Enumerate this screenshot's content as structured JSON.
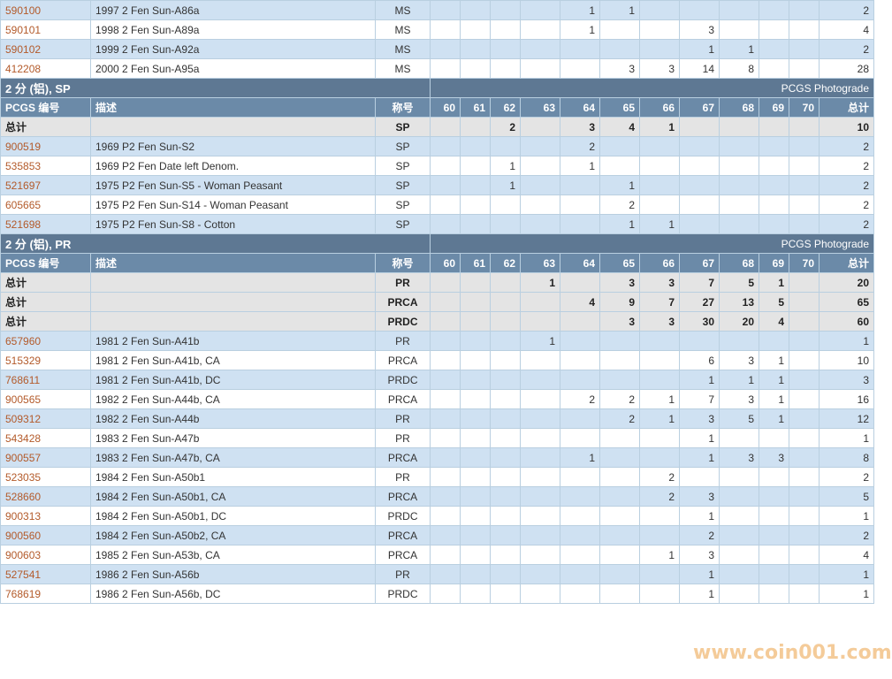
{
  "columns": {
    "pcgs": "PCGS 编号",
    "desc": "描述",
    "designation": "称号",
    "grades": [
      "60",
      "61",
      "62",
      "63",
      "64",
      "65",
      "66",
      "67",
      "68",
      "69",
      "70"
    ],
    "total": "总计"
  },
  "watermark": "www.coin001.com",
  "blocks": [
    {
      "type": "rows",
      "rows": [
        {
          "pcgs": "590100",
          "desc": "1997 2 Fen Sun-A86a",
          "des": "MS",
          "g": [
            "",
            "",
            "",
            "",
            "1",
            "1",
            "",
            "",
            "",
            "",
            ""
          ],
          "total": "2",
          "alt": true
        },
        {
          "pcgs": "590101",
          "desc": "1998 2 Fen Sun-A89a",
          "des": "MS",
          "g": [
            "",
            "",
            "",
            "",
            "1",
            "",
            "",
            "3",
            "",
            "",
            ""
          ],
          "total": "4",
          "alt": false
        },
        {
          "pcgs": "590102",
          "desc": "1999 2 Fen Sun-A92a",
          "des": "MS",
          "g": [
            "",
            "",
            "",
            "",
            "",
            "",
            "",
            "1",
            "1",
            "",
            ""
          ],
          "total": "2",
          "alt": true
        },
        {
          "pcgs": "412208",
          "desc": "2000 2 Fen Sun-A95a",
          "des": "MS",
          "g": [
            "",
            "",
            "",
            "",
            "",
            "3",
            "3",
            "14",
            "8",
            "",
            ""
          ],
          "total": "28",
          "alt": false
        }
      ]
    },
    {
      "type": "section",
      "title": "2 分 (铝), SP",
      "right": "PCGS Photograde"
    },
    {
      "type": "header"
    },
    {
      "type": "totals",
      "rows": [
        {
          "label": "总计",
          "des": "SP",
          "g": [
            "",
            "",
            "2",
            "",
            "3",
            "4",
            "1",
            "",
            "",
            "",
            ""
          ],
          "total": "10"
        }
      ]
    },
    {
      "type": "rows",
      "rows": [
        {
          "pcgs": "900519",
          "desc": "1969 P2 Fen Sun-S2",
          "des": "SP",
          "g": [
            "",
            "",
            "",
            "",
            "2",
            "",
            "",
            "",
            "",
            "",
            ""
          ],
          "total": "2",
          "alt": true
        },
        {
          "pcgs": "535853",
          "desc": "1969 P2 Fen Date left Denom.",
          "des": "SP",
          "g": [
            "",
            "",
            "1",
            "",
            "1",
            "",
            "",
            "",
            "",
            "",
            ""
          ],
          "total": "2",
          "alt": false
        },
        {
          "pcgs": "521697",
          "desc": "1975 P2 Fen Sun-S5 - Woman Peasant",
          "des": "SP",
          "g": [
            "",
            "",
            "1",
            "",
            "",
            "1",
            "",
            "",
            "",
            "",
            ""
          ],
          "total": "2",
          "alt": true
        },
        {
          "pcgs": "605665",
          "desc": "1975 P2 Fen Sun-S14 - Woman Peasant",
          "des": "SP",
          "g": [
            "",
            "",
            "",
            "",
            "",
            "2",
            "",
            "",
            "",
            "",
            ""
          ],
          "total": "2",
          "alt": false
        },
        {
          "pcgs": "521698",
          "desc": "1975 P2 Fen Sun-S8 - Cotton",
          "des": "SP",
          "g": [
            "",
            "",
            "",
            "",
            "",
            "1",
            "1",
            "",
            "",
            "",
            ""
          ],
          "total": "2",
          "alt": true
        }
      ]
    },
    {
      "type": "section",
      "title": "2 分 (铝), PR",
      "right": "PCGS Photograde"
    },
    {
      "type": "header"
    },
    {
      "type": "totals",
      "rows": [
        {
          "label": "总计",
          "des": "PR",
          "g": [
            "",
            "",
            "",
            "1",
            "",
            "3",
            "3",
            "7",
            "5",
            "1",
            ""
          ],
          "total": "20"
        },
        {
          "label": "总计",
          "des": "PRCA",
          "g": [
            "",
            "",
            "",
            "",
            "4",
            "9",
            "7",
            "27",
            "13",
            "5",
            ""
          ],
          "total": "65"
        },
        {
          "label": "总计",
          "des": "PRDC",
          "g": [
            "",
            "",
            "",
            "",
            "",
            "3",
            "3",
            "30",
            "20",
            "4",
            ""
          ],
          "total": "60"
        }
      ]
    },
    {
      "type": "rows",
      "rows": [
        {
          "pcgs": "657960",
          "desc": "1981 2 Fen Sun-A41b",
          "des": "PR",
          "g": [
            "",
            "",
            "",
            "1",
            "",
            "",
            "",
            "",
            "",
            "",
            ""
          ],
          "total": "1",
          "alt": true
        },
        {
          "pcgs": "515329",
          "desc": "1981 2 Fen Sun-A41b, CA",
          "des": "PRCA",
          "g": [
            "",
            "",
            "",
            "",
            "",
            "",
            "",
            "6",
            "3",
            "1",
            ""
          ],
          "total": "10",
          "alt": false
        },
        {
          "pcgs": "768611",
          "desc": "1981 2 Fen Sun-A41b, DC",
          "des": "PRDC",
          "g": [
            "",
            "",
            "",
            "",
            "",
            "",
            "",
            "1",
            "1",
            "1",
            ""
          ],
          "total": "3",
          "alt": true
        },
        {
          "pcgs": "900565",
          "desc": "1982 2 Fen Sun-A44b, CA",
          "des": "PRCA",
          "g": [
            "",
            "",
            "",
            "",
            "2",
            "2",
            "1",
            "7",
            "3",
            "1",
            ""
          ],
          "total": "16",
          "alt": false
        },
        {
          "pcgs": "509312",
          "desc": "1982 2 Fen Sun-A44b",
          "des": "PR",
          "g": [
            "",
            "",
            "",
            "",
            "",
            "2",
            "1",
            "3",
            "5",
            "1",
            ""
          ],
          "total": "12",
          "alt": true
        },
        {
          "pcgs": "543428",
          "desc": "1983 2 Fen Sun-A47b",
          "des": "PR",
          "g": [
            "",
            "",
            "",
            "",
            "",
            "",
            "",
            "1",
            "",
            "",
            ""
          ],
          "total": "1",
          "alt": false
        },
        {
          "pcgs": "900557",
          "desc": "1983 2 Fen Sun-A47b, CA",
          "des": "PRCA",
          "g": [
            "",
            "",
            "",
            "",
            "1",
            "",
            "",
            "1",
            "3",
            "3",
            ""
          ],
          "total": "8",
          "alt": true
        },
        {
          "pcgs": "523035",
          "desc": "1984 2 Fen Sun-A50b1",
          "des": "PR",
          "g": [
            "",
            "",
            "",
            "",
            "",
            "",
            "2",
            "",
            "",
            "",
            ""
          ],
          "total": "2",
          "alt": false
        },
        {
          "pcgs": "528660",
          "desc": "1984 2 Fen Sun-A50b1, CA",
          "des": "PRCA",
          "g": [
            "",
            "",
            "",
            "",
            "",
            "",
            "2",
            "3",
            "",
            "",
            ""
          ],
          "total": "5",
          "alt": true
        },
        {
          "pcgs": "900313",
          "desc": "1984 2 Fen Sun-A50b1, DC",
          "des": "PRDC",
          "g": [
            "",
            "",
            "",
            "",
            "",
            "",
            "",
            "1",
            "",
            "",
            ""
          ],
          "total": "1",
          "alt": false
        },
        {
          "pcgs": "900560",
          "desc": "1984 2 Fen Sun-A50b2, CA",
          "des": "PRCA",
          "g": [
            "",
            "",
            "",
            "",
            "",
            "",
            "",
            "2",
            "",
            "",
            ""
          ],
          "total": "2",
          "alt": true
        },
        {
          "pcgs": "900603",
          "desc": "1985 2 Fen Sun-A53b, CA",
          "des": "PRCA",
          "g": [
            "",
            "",
            "",
            "",
            "",
            "",
            "1",
            "3",
            "",
            "",
            ""
          ],
          "total": "4",
          "alt": false
        },
        {
          "pcgs": "527541",
          "desc": "1986 2 Fen Sun-A56b",
          "des": "PR",
          "g": [
            "",
            "",
            "",
            "",
            "",
            "",
            "",
            "1",
            "",
            "",
            ""
          ],
          "total": "1",
          "alt": true
        },
        {
          "pcgs": "768619",
          "desc": "1986 2 Fen Sun-A56b, DC",
          "des": "PRDC",
          "g": [
            "",
            "",
            "",
            "",
            "",
            "",
            "",
            "1",
            "",
            "",
            ""
          ],
          "total": "1",
          "alt": false
        }
      ]
    }
  ]
}
